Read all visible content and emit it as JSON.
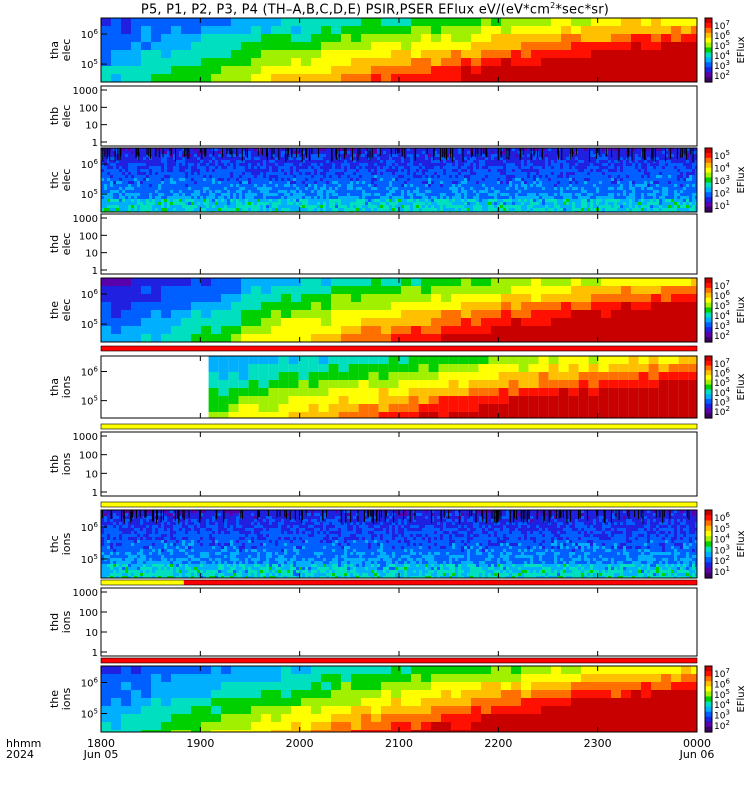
{
  "header": {
    "title": "P5, P1, P2, P3, P4 (TH–A,B,C,D,E) PSIR,PSER EFlux eV/(eV*cm",
    "title_sup": "2",
    "title_tail": "*sec*sr)"
  },
  "footer": {
    "hhmm": "hhmm",
    "year": "2024"
  },
  "colors": {
    "flag_red": "#ff0000",
    "flag_yellow": "#ffff00",
    "palette": [
      "#3c0064",
      "#5a00aa",
      "#2020e0",
      "#0060ff",
      "#00b0ff",
      "#00e0c0",
      "#00d000",
      "#a0f000",
      "#ffff00",
      "#ffc000",
      "#ff7000",
      "#ff1000",
      "#c80000"
    ]
  },
  "chart_data": [
    {
      "id": "tha-elec",
      "type": "heatmap",
      "ylabel": [
        "tha",
        "elec"
      ],
      "yticks": [
        "10",
        "10"
      ],
      "ytick_exp": [
        "6",
        "5"
      ],
      "colorbar": {
        "label": "EFlux",
        "ticks": [
          "10",
          "10",
          "10",
          "10",
          "10",
          "10"
        ],
        "exp": [
          "7",
          "6",
          "5",
          "4",
          "3",
          "2"
        ]
      },
      "texture": "smooth"
    },
    {
      "id": "thb-elec",
      "type": "heatmap",
      "ylabel": [
        "thb",
        "elec"
      ],
      "yticks": [
        "1000",
        "100",
        "10",
        "1"
      ],
      "empty": true
    },
    {
      "id": "thc-elec",
      "type": "heatmap",
      "ylabel": [
        "thc",
        "elec"
      ],
      "yticks": [
        "10",
        "10"
      ],
      "ytick_exp": [
        "6",
        "5"
      ],
      "colorbar": {
        "label": "EFlux",
        "ticks": [
          "10",
          "10",
          "10",
          "10",
          "10"
        ],
        "exp": [
          "5",
          "4",
          "3",
          "2",
          "1"
        ]
      },
      "texture": "noise"
    },
    {
      "id": "thd-elec",
      "type": "heatmap",
      "ylabel": [
        "thd",
        "elec"
      ],
      "yticks": [
        "1000",
        "100",
        "10",
        "1"
      ],
      "empty": true
    },
    {
      "id": "the-elec",
      "type": "heatmap",
      "ylabel": [
        "the",
        "elec"
      ],
      "yticks": [
        "10",
        "10"
      ],
      "ytick_exp": [
        "6",
        "5"
      ],
      "colorbar": {
        "label": "EFlux",
        "ticks": [
          "10",
          "10",
          "10",
          "10",
          "10",
          "10"
        ],
        "exp": [
          "7",
          "6",
          "5",
          "4",
          "3",
          "2"
        ]
      },
      "texture": "smooth",
      "step_at": "19:20"
    },
    {
      "id": "tha-ions",
      "type": "heatmap",
      "ylabel": [
        "tha",
        "ions"
      ],
      "yticks": [
        "10",
        "10"
      ],
      "ytick_exp": [
        "6",
        "5"
      ],
      "colorbar": {
        "label": "EFlux",
        "ticks": [
          "10",
          "10",
          "10",
          "10",
          "10",
          "10"
        ],
        "exp": [
          "7",
          "6",
          "5",
          "4",
          "3",
          "2"
        ]
      },
      "texture": "smooth",
      "data_start": "19:05"
    },
    {
      "id": "thb-ions",
      "type": "heatmap",
      "ylabel": [
        "thb",
        "ions"
      ],
      "yticks": [
        "1000",
        "100",
        "10",
        "1"
      ],
      "empty": true
    },
    {
      "id": "thc-ions",
      "type": "heatmap",
      "ylabel": [
        "thc",
        "ions"
      ],
      "yticks": [
        "10",
        "10"
      ],
      "ytick_exp": [
        "6",
        "5"
      ],
      "colorbar": {
        "label": "EFlux",
        "ticks": [
          "10",
          "10",
          "10",
          "10",
          "10",
          "10"
        ],
        "exp": [
          "6",
          "5",
          "4",
          "3",
          "2",
          "1"
        ]
      },
      "texture": "noise"
    },
    {
      "id": "thd-ions",
      "type": "heatmap",
      "ylabel": [
        "thd",
        "ions"
      ],
      "yticks": [
        "1000",
        "100",
        "10",
        "1"
      ],
      "empty": true
    },
    {
      "id": "the-ions",
      "type": "heatmap",
      "ylabel": [
        "the",
        "ions"
      ],
      "yticks": [
        "10",
        "10"
      ],
      "ytick_exp": [
        "6",
        "5"
      ],
      "colorbar": {
        "label": "EFlux",
        "ticks": [
          "10",
          "10",
          "10",
          "10",
          "10",
          "10"
        ],
        "exp": [
          "7",
          "6",
          "5",
          "4",
          "3",
          "2"
        ]
      },
      "texture": "smooth"
    }
  ],
  "flag_bars": [
    {
      "after": "the-elec",
      "segments": [
        {
          "from": "18:00",
          "to": "24:00",
          "color": "red"
        }
      ]
    },
    {
      "after": "tha-ions",
      "segments": [
        {
          "from": "18:00",
          "to": "24:00",
          "color": "yellow"
        }
      ]
    },
    {
      "after": "thb-ions",
      "segments": [
        {
          "from": "18:00",
          "to": "24:00",
          "color": "yellow"
        }
      ]
    },
    {
      "after": "thc-ions",
      "segments": [
        {
          "from": "18:00",
          "to": "18:50",
          "color": "yellow"
        },
        {
          "from": "18:50",
          "to": "24:00",
          "color": "red"
        }
      ]
    },
    {
      "after": "thd-ions",
      "segments": [
        {
          "from": "18:00",
          "to": "24:00",
          "color": "red"
        }
      ]
    }
  ],
  "x_axis": {
    "ticks": [
      "1800",
      "1900",
      "2000",
      "2100",
      "2200",
      "2300",
      "0000"
    ],
    "date_labels": [
      "Jun 05",
      "Jun 06"
    ]
  }
}
